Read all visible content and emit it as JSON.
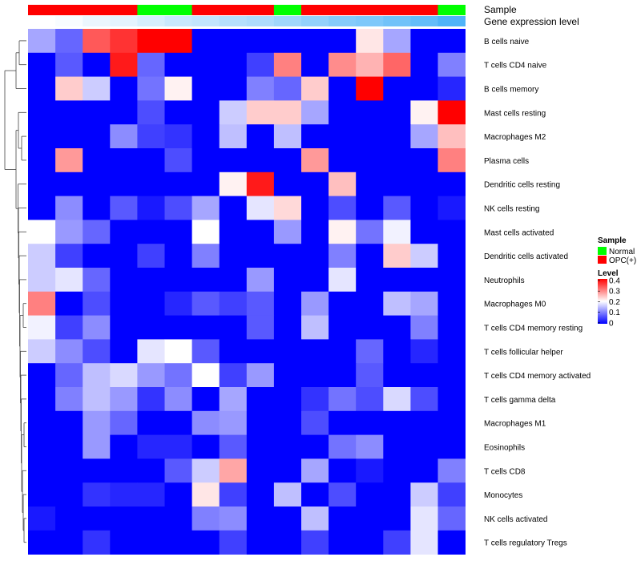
{
  "chart_data": {
    "type": "heatmap",
    "title": "",
    "annotation_tracks": [
      {
        "name": "Sample",
        "values": [
          "OPC(+)",
          "OPC(+)",
          "OPC(+)",
          "OPC(+)",
          "Normal",
          "Normal",
          "OPC(+)",
          "OPC(+)",
          "OPC(+)",
          "Normal",
          "OPC(+)",
          "OPC(+)",
          "OPC(+)",
          "OPC(+)",
          "OPC(+)",
          "Normal"
        ]
      },
      {
        "name": "Gene expression level",
        "values": [
          0.02,
          0.03,
          0.05,
          0.06,
          0.08,
          0.1,
          0.11,
          0.13,
          0.14,
          0.16,
          0.18,
          0.2,
          0.21,
          0.23,
          0.25,
          0.28
        ]
      }
    ],
    "rows": [
      "B cells naive",
      "T cells CD4 naive",
      "B cells memory",
      "Mast cells resting",
      "Macrophages M2",
      "Plasma cells",
      "Dendritic cells resting",
      "NK cells resting",
      "Mast cells activated",
      "Dendritic cells activated",
      "Neutrophils",
      "Macrophages M0",
      "T cells CD4 memory resting",
      "T cells follicular helper",
      "T cells CD4 memory activated",
      "T cells gamma delta",
      "Macrophages M1",
      "Eosinophils",
      "T cells CD8",
      "Monocytes",
      "NK cells activated",
      "T cells regulatory  Tregs"
    ],
    "matrix": [
      [
        0.13,
        0.08,
        0.33,
        0.36,
        0.4,
        0.4,
        0,
        0,
        0,
        0,
        0,
        0,
        0.22,
        0.13,
        0,
        0
      ],
      [
        0,
        0.07,
        0,
        0.38,
        0.08,
        0,
        0,
        0,
        0.05,
        0.3,
        0,
        0.29,
        0.26,
        0.32,
        0,
        0.1
      ],
      [
        0,
        0.24,
        0.16,
        0,
        0.09,
        0.21,
        0,
        0,
        0.1,
        0.08,
        0.24,
        0,
        0.4,
        0,
        0,
        0.03
      ],
      [
        0,
        0,
        0,
        0,
        0.06,
        0,
        0,
        0.16,
        0.24,
        0.24,
        0.13,
        0,
        0,
        0,
        0.21,
        0.4
      ],
      [
        0,
        0,
        0,
        0.11,
        0.05,
        0.04,
        0,
        0.15,
        0,
        0.15,
        0,
        0,
        0,
        0,
        0.13,
        0.25
      ],
      [
        0,
        0.28,
        0,
        0,
        0,
        0.06,
        0,
        0,
        0,
        0,
        0.28,
        0,
        0,
        0,
        0,
        0.3
      ],
      [
        0,
        0,
        0,
        0,
        0,
        0,
        0,
        0.21,
        0.38,
        0,
        0,
        0.25,
        0,
        0,
        0,
        0
      ],
      [
        0,
        0.11,
        0,
        0.07,
        0.02,
        0.06,
        0.13,
        0,
        0.18,
        0.23,
        0,
        0.06,
        0,
        0.07,
        0,
        0.02
      ],
      [
        0.2,
        0.12,
        0.08,
        0,
        0,
        0,
        0.2,
        0,
        0,
        0.12,
        0,
        0.21,
        0.09,
        0.19,
        0,
        0
      ],
      [
        0.16,
        0.05,
        0,
        0,
        0.05,
        0,
        0.1,
        0,
        0,
        0,
        0,
        0.1,
        0,
        0.24,
        0.16,
        0
      ],
      [
        0.16,
        0.18,
        0.08,
        0,
        0,
        0,
        0,
        0,
        0.12,
        0,
        0,
        0.18,
        0,
        0,
        0,
        0
      ],
      [
        0.3,
        0,
        0.06,
        0,
        0,
        0.03,
        0.07,
        0.05,
        0.07,
        0,
        0.12,
        0,
        0,
        0.15,
        0.13,
        0
      ],
      [
        0.19,
        0.05,
        0.11,
        0,
        0,
        0,
        0,
        0,
        0.07,
        0,
        0.15,
        0,
        0,
        0,
        0.1,
        0
      ],
      [
        0.16,
        0.11,
        0.06,
        0,
        0.18,
        0.2,
        0.07,
        0,
        0,
        0,
        0,
        0,
        0.08,
        0,
        0.03,
        0
      ],
      [
        0,
        0.08,
        0.15,
        0.17,
        0.12,
        0.09,
        0.2,
        0.05,
        0.12,
        0,
        0,
        0,
        0.07,
        0,
        0,
        0
      ],
      [
        0,
        0.1,
        0.15,
        0.12,
        0.04,
        0.11,
        0,
        0.13,
        0,
        0,
        0.04,
        0.09,
        0.06,
        0.17,
        0.06,
        0
      ],
      [
        0,
        0,
        0.12,
        0.08,
        0,
        0,
        0.11,
        0.12,
        0,
        0,
        0.06,
        0,
        0,
        0,
        0,
        0
      ],
      [
        0,
        0,
        0.12,
        0,
        0.03,
        0.03,
        0,
        0.07,
        0,
        0,
        0,
        0.09,
        0.11,
        0,
        0,
        0
      ],
      [
        0,
        0,
        0,
        0,
        0,
        0.07,
        0.16,
        0.27,
        0,
        0,
        0.13,
        0,
        0.02,
        0,
        0,
        0.1
      ],
      [
        0,
        0,
        0.04,
        0.03,
        0.03,
        0,
        0.22,
        0.05,
        0,
        0.15,
        0,
        0.06,
        0,
        0,
        0.16,
        0.05
      ],
      [
        0.02,
        0,
        0,
        0,
        0,
        0,
        0.1,
        0.11,
        0,
        0,
        0.15,
        0,
        0,
        0,
        0.18,
        0.08
      ],
      [
        0,
        0,
        0.04,
        0,
        0,
        0,
        0,
        0.05,
        0,
        0,
        0.05,
        0,
        0,
        0.05,
        0.18,
        0
      ]
    ],
    "color_scale": {
      "min": 0,
      "max": 0.4,
      "low": "#0000FF",
      "mid": "#FFFFFF",
      "high": "#FF0000",
      "mid_value": 0.2
    },
    "legend": {
      "placement": "right",
      "sample_title": "Sample",
      "sample_entries": [
        {
          "label": "Normal",
          "color": "#00FF00"
        },
        {
          "label": "OPC(+)",
          "color": "#FF0000"
        }
      ],
      "level_title": "Level",
      "level_ticks": [
        "0.4",
        "0.3",
        "0.2",
        "0.1",
        "0"
      ]
    },
    "annotation_colors": {
      "Normal": "#00FF00",
      "OPC(+)": "#FF0000",
      "expr_low": "#FFFFFF",
      "expr_high": "#4FB4F8"
    },
    "dendrogram": "row"
  }
}
